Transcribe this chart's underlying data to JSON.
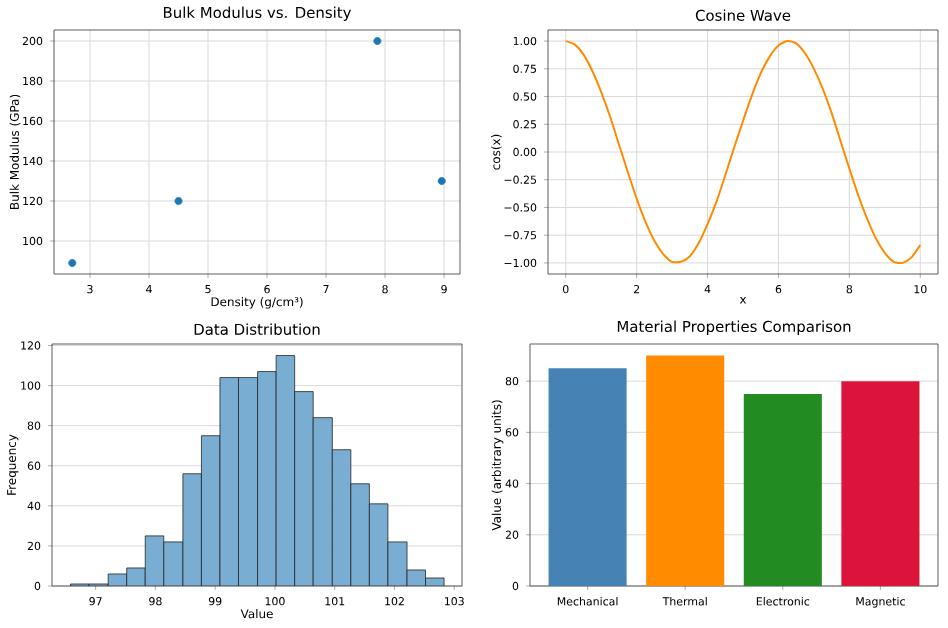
{
  "chart_data": [
    {
      "type": "scatter",
      "title": "Bulk Modulus vs. Density",
      "xlabel": "Density (g/cm³)",
      "ylabel": "Bulk Modulus (GPa)",
      "x": [
        2.7,
        4.5,
        7.87,
        8.96
      ],
      "series": [
        {
          "color": "#1f77b4",
          "values": [
            89,
            120,
            200,
            130
          ]
        }
      ],
      "marker": "circle",
      "xlim": [
        2.39,
        9.27
      ],
      "ylim": [
        83.5,
        205.5
      ],
      "xticks": [
        3,
        4,
        5,
        6,
        7,
        8,
        9
      ],
      "yticks": [
        100,
        120,
        140,
        160,
        180,
        200
      ],
      "grid": true
    },
    {
      "type": "line",
      "title": "Cosine Wave",
      "xlabel": "x",
      "ylabel": "cos(x)",
      "x": [
        0,
        0.25,
        0.5,
        0.75,
        1,
        1.25,
        1.5,
        1.75,
        2,
        2.25,
        2.5,
        2.75,
        3,
        3.25,
        3.5,
        3.75,
        4,
        4.25,
        4.5,
        4.75,
        5,
        5.25,
        5.5,
        5.75,
        6,
        6.25,
        6.5,
        6.75,
        7,
        7.25,
        7.5,
        7.75,
        8,
        8.25,
        8.5,
        8.75,
        9,
        9.25,
        9.5,
        9.75,
        10
      ],
      "series": [
        {
          "color": "#ff8c00",
          "values": [
            1,
            0.97,
            0.88,
            0.73,
            0.54,
            0.32,
            0.07,
            -0.18,
            -0.42,
            -0.63,
            -0.8,
            -0.92,
            -0.99,
            -0.99,
            -0.94,
            -0.82,
            -0.65,
            -0.45,
            -0.21,
            0.04,
            0.28,
            0.51,
            0.71,
            0.86,
            0.96,
            1,
            0.98,
            0.89,
            0.75,
            0.57,
            0.35,
            0.1,
            -0.15,
            -0.39,
            -0.6,
            -0.78,
            -0.91,
            -0.99,
            -1,
            -0.95,
            -0.84
          ]
        }
      ],
      "line_style": "solid",
      "xlim": [
        -0.5,
        10.5
      ],
      "ylim": [
        -1.1,
        1.1
      ],
      "xticks": [
        0,
        2,
        4,
        6,
        8,
        10
      ],
      "yticks": [
        {
          "value": -1,
          "label": "−1.00"
        },
        {
          "value": -0.75,
          "label": "−0.75"
        },
        {
          "value": -0.5,
          "label": "−0.50"
        },
        {
          "value": -0.25,
          "label": "−0.25"
        },
        {
          "value": 0,
          "label": "0.00"
        },
        {
          "value": 0.25,
          "label": "0.25"
        },
        {
          "value": 0.5,
          "label": "0.50"
        },
        {
          "value": 0.75,
          "label": "0.75"
        },
        {
          "value": 1,
          "label": "1.00"
        }
      ],
      "grid": true
    },
    {
      "type": "histogram",
      "title": "Data Distribution",
      "xlabel": "Value",
      "ylabel": "Frequency",
      "bins": [
        96.58,
        96.89,
        97.21,
        97.52,
        97.83,
        98.14,
        98.46,
        98.77,
        99.08,
        99.39,
        99.71,
        100.02,
        100.33,
        100.64,
        100.96,
        101.27,
        101.58,
        101.89,
        102.21,
        102.52,
        102.83
      ],
      "values": [
        1,
        1,
        6,
        9,
        25,
        22,
        56,
        75,
        104,
        104,
        107,
        115,
        97,
        84,
        68,
        51,
        41,
        22,
        8,
        4
      ],
      "color": "#79add2",
      "xlim": [
        96.27,
        103.13
      ],
      "ylim": [
        0,
        120.75
      ],
      "xticks": [
        97,
        98,
        99,
        100,
        101,
        102,
        103
      ],
      "yticks": [
        0,
        20,
        40,
        60,
        80,
        100,
        120
      ],
      "grid": "y"
    },
    {
      "type": "bar",
      "title": "Material Properties Comparison",
      "ylabel": "Value (arbitrary units)",
      "categories": [
        "Mechanical",
        "Thermal",
        "Electronic",
        "Magnetic"
      ],
      "values": [
        85,
        90,
        75,
        80
      ],
      "colors": [
        "#4682b4",
        "#ff8c00",
        "#228b22",
        "#dc143c"
      ],
      "ylim": [
        0,
        94.5
      ],
      "yticks": [
        0,
        20,
        40,
        60,
        80
      ],
      "grid": "y"
    }
  ]
}
